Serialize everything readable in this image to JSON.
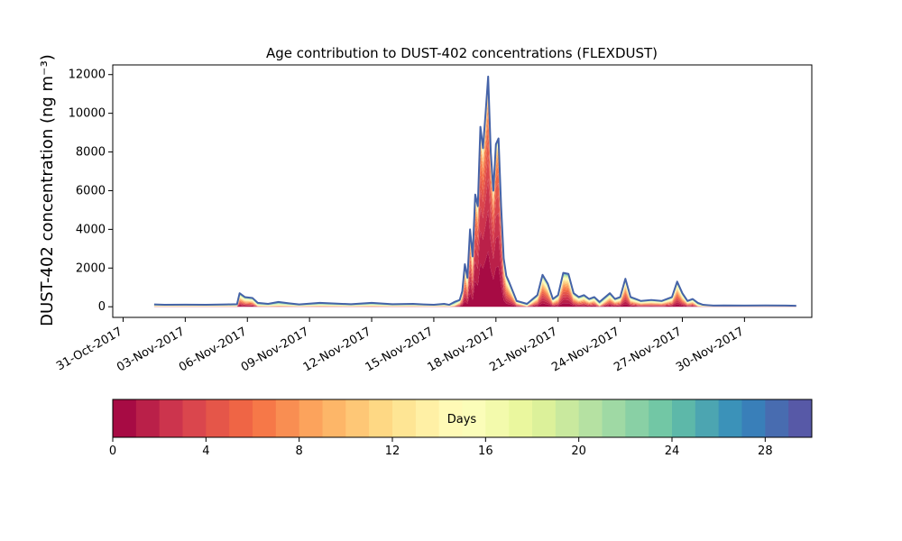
{
  "chart_data": [
    {
      "type": "area",
      "stacked": true,
      "title": "Age contribution to DUST-402 concentrations (FLEXDUST)",
      "xlabel": "",
      "ylabel": "DUST-402 concentration (ng m⁻³)",
      "x_tick_labels": [
        "31-Oct-2017",
        "03-Nov-2017",
        "06-Nov-2017",
        "09-Nov-2017",
        "12-Nov-2017",
        "15-Nov-2017",
        "18-Nov-2017",
        "21-Nov-2017",
        "24-Nov-2017",
        "27-Nov-2017",
        "30-Nov-2017"
      ],
      "x_ticks": [
        "2017-10-31",
        "2017-11-03",
        "2017-11-06",
        "2017-11-09",
        "2017-11-12",
        "2017-11-15",
        "2017-11-18",
        "2017-11-21",
        "2017-11-24",
        "2017-11-27",
        "2017-11-30"
      ],
      "xlim": [
        "2017-10-30 12:00",
        "2017-12-03 06:00"
      ],
      "y_ticks": [
        0,
        2000,
        4000,
        6000,
        8000,
        10000,
        12000
      ],
      "ylim": [
        -550,
        12500
      ],
      "grid": false,
      "series_note": "30 stacked age classes (day 0 to day 30), coloured by the colorbar; total concentration shown",
      "total": {
        "x": [
          "2017-11-01 12:00",
          "2017-11-02 00:00",
          "2017-11-03 00:00",
          "2017-11-04 00:00",
          "2017-11-05 00:00",
          "2017-11-05 12:00",
          "2017-11-05 15:00",
          "2017-11-05 21:00",
          "2017-11-06 06:00",
          "2017-11-06 12:00",
          "2017-11-07 00:00",
          "2017-11-07 12:00",
          "2017-11-08 00:00",
          "2017-11-08 12:00",
          "2017-11-09 12:00",
          "2017-11-11 00:00",
          "2017-11-12 00:00",
          "2017-11-13 00:00",
          "2017-11-14 00:00",
          "2017-11-14 12:00",
          "2017-11-15 00:00",
          "2017-11-15 12:00",
          "2017-11-15 18:00",
          "2017-11-16 00:00",
          "2017-11-16 06:00",
          "2017-11-16 09:00",
          "2017-11-16 12:00",
          "2017-11-16 15:00",
          "2017-11-16 18:00",
          "2017-11-16 21:00",
          "2017-11-17 00:00",
          "2017-11-17 03:00",
          "2017-11-17 06:00",
          "2017-11-17 09:00",
          "2017-11-17 12:00",
          "2017-11-17 15:00",
          "2017-11-17 18:00",
          "2017-11-17 21:00",
          "2017-11-18 00:00",
          "2017-11-18 03:00",
          "2017-11-18 06:00",
          "2017-11-18 09:00",
          "2017-11-18 12:00",
          "2017-11-18 15:00",
          "2017-11-19 00:00",
          "2017-11-19 12:00",
          "2017-11-20 00:00",
          "2017-11-20 06:00",
          "2017-11-20 12:00",
          "2017-11-20 18:00",
          "2017-11-21 00:00",
          "2017-11-21 06:00",
          "2017-11-21 12:00",
          "2017-11-21 18:00",
          "2017-11-22 00:00",
          "2017-11-22 06:00",
          "2017-11-22 12:00",
          "2017-11-22 18:00",
          "2017-11-23 00:00",
          "2017-11-23 12:00",
          "2017-11-23 18:00",
          "2017-11-24 00:00",
          "2017-11-24 06:00",
          "2017-11-24 12:00",
          "2017-11-24 18:00",
          "2017-11-25 00:00",
          "2017-11-25 12:00",
          "2017-11-26 00:00",
          "2017-11-26 12:00",
          "2017-11-26 18:00",
          "2017-11-27 00:00",
          "2017-11-27 06:00",
          "2017-11-27 12:00",
          "2017-11-27 18:00",
          "2017-11-28 00:00",
          "2017-11-28 06:00",
          "2017-11-28 12:00",
          "2017-11-29 00:00",
          "2017-11-30 00:00",
          "2017-12-01 00:00",
          "2017-12-02 00:00",
          "2017-12-02 12:00"
        ],
        "y": [
          120,
          100,
          110,
          100,
          120,
          130,
          700,
          500,
          450,
          200,
          150,
          250,
          180,
          120,
          200,
          130,
          200,
          130,
          150,
          120,
          100,
          150,
          100,
          250,
          350,
          800,
          2200,
          1500,
          4000,
          2600,
          5800,
          5200,
          9300,
          8200,
          10000,
          11900,
          8000,
          6000,
          8400,
          8700,
          5200,
          2500,
          1600,
          1300,
          300,
          150,
          600,
          1650,
          1200,
          400,
          600,
          1750,
          1700,
          700,
          500,
          600,
          400,
          500,
          250,
          700,
          400,
          500,
          1450,
          500,
          400,
          300,
          350,
          300,
          500,
          1300,
          700,
          300,
          400,
          200,
          100,
          80,
          60,
          70,
          60,
          70,
          60,
          50
        ]
      }
    },
    {
      "type": "heatmap",
      "role": "colorbar",
      "label": "Days",
      "range": [
        0,
        30
      ],
      "bins": 30,
      "ticks": [
        0,
        4,
        8,
        12,
        16,
        20,
        24,
        28
      ],
      "colormap": [
        "#9e0142",
        "#d53e4f",
        "#f46d43",
        "#fdae61",
        "#fee08b",
        "#ffffbf",
        "#e6f598",
        "#abdda4",
        "#66c2a5",
        "#3288bd",
        "#5e4fa2"
      ]
    }
  ]
}
